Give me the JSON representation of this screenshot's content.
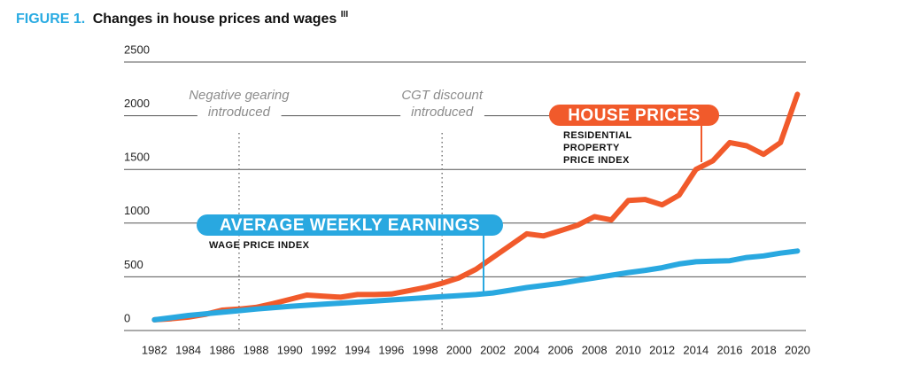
{
  "chart_data": {
    "type": "line",
    "figure_label": "FIGURE 1.",
    "title": "Changes in house prices and wages",
    "title_note": "III",
    "x": [
      1982,
      1983,
      1984,
      1985,
      1986,
      1987,
      1988,
      1989,
      1990,
      1991,
      1992,
      1993,
      1994,
      1995,
      1996,
      1997,
      1998,
      1999,
      2000,
      2001,
      2002,
      2003,
      2004,
      2005,
      2006,
      2007,
      2008,
      2009,
      2010,
      2011,
      2012,
      2013,
      2014,
      2015,
      2016,
      2017,
      2018,
      2019,
      2020
    ],
    "series": [
      {
        "name": "HOUSE PRICES",
        "subtitle": [
          "RESIDENTIAL",
          "PROPERTY",
          "PRICE INDEX"
        ],
        "color": "#f15a2b",
        "values": [
          100,
          110,
          125,
          150,
          190,
          200,
          215,
          250,
          290,
          330,
          320,
          310,
          335,
          335,
          340,
          370,
          400,
          440,
          490,
          570,
          680,
          790,
          900,
          880,
          930,
          980,
          1060,
          1030,
          1210,
          1220,
          1170,
          1260,
          1500,
          1580,
          1750,
          1720,
          1640,
          1750,
          2200
        ]
      },
      {
        "name": "AVERAGE WEEKLY EARNINGS",
        "subtitle": [
          "WAGE PRICE INDEX"
        ],
        "color": "#29a8e0",
        "values": [
          100,
          120,
          140,
          155,
          170,
          185,
          200,
          212,
          225,
          235,
          245,
          255,
          265,
          275,
          285,
          295,
          305,
          315,
          325,
          335,
          350,
          375,
          400,
          420,
          440,
          465,
          490,
          515,
          540,
          560,
          585,
          620,
          640,
          645,
          650,
          680,
          695,
          720,
          740
        ]
      }
    ],
    "events": [
      {
        "year": 1987,
        "label": [
          "Negative gearing",
          "introduced"
        ]
      },
      {
        "year": 1999,
        "label": [
          "CGT discount",
          "introduced"
        ]
      }
    ],
    "xlim": [
      1980.2,
      2020.5
    ],
    "xticks": [
      1982,
      1984,
      1986,
      1988,
      1990,
      1992,
      1994,
      1996,
      1998,
      2000,
      2002,
      2004,
      2006,
      2008,
      2010,
      2012,
      2014,
      2016,
      2018,
      2020
    ],
    "ylim": [
      0,
      2500
    ],
    "yticks": [
      0,
      500,
      1000,
      1500,
      2000,
      2500
    ],
    "grid": true
  }
}
